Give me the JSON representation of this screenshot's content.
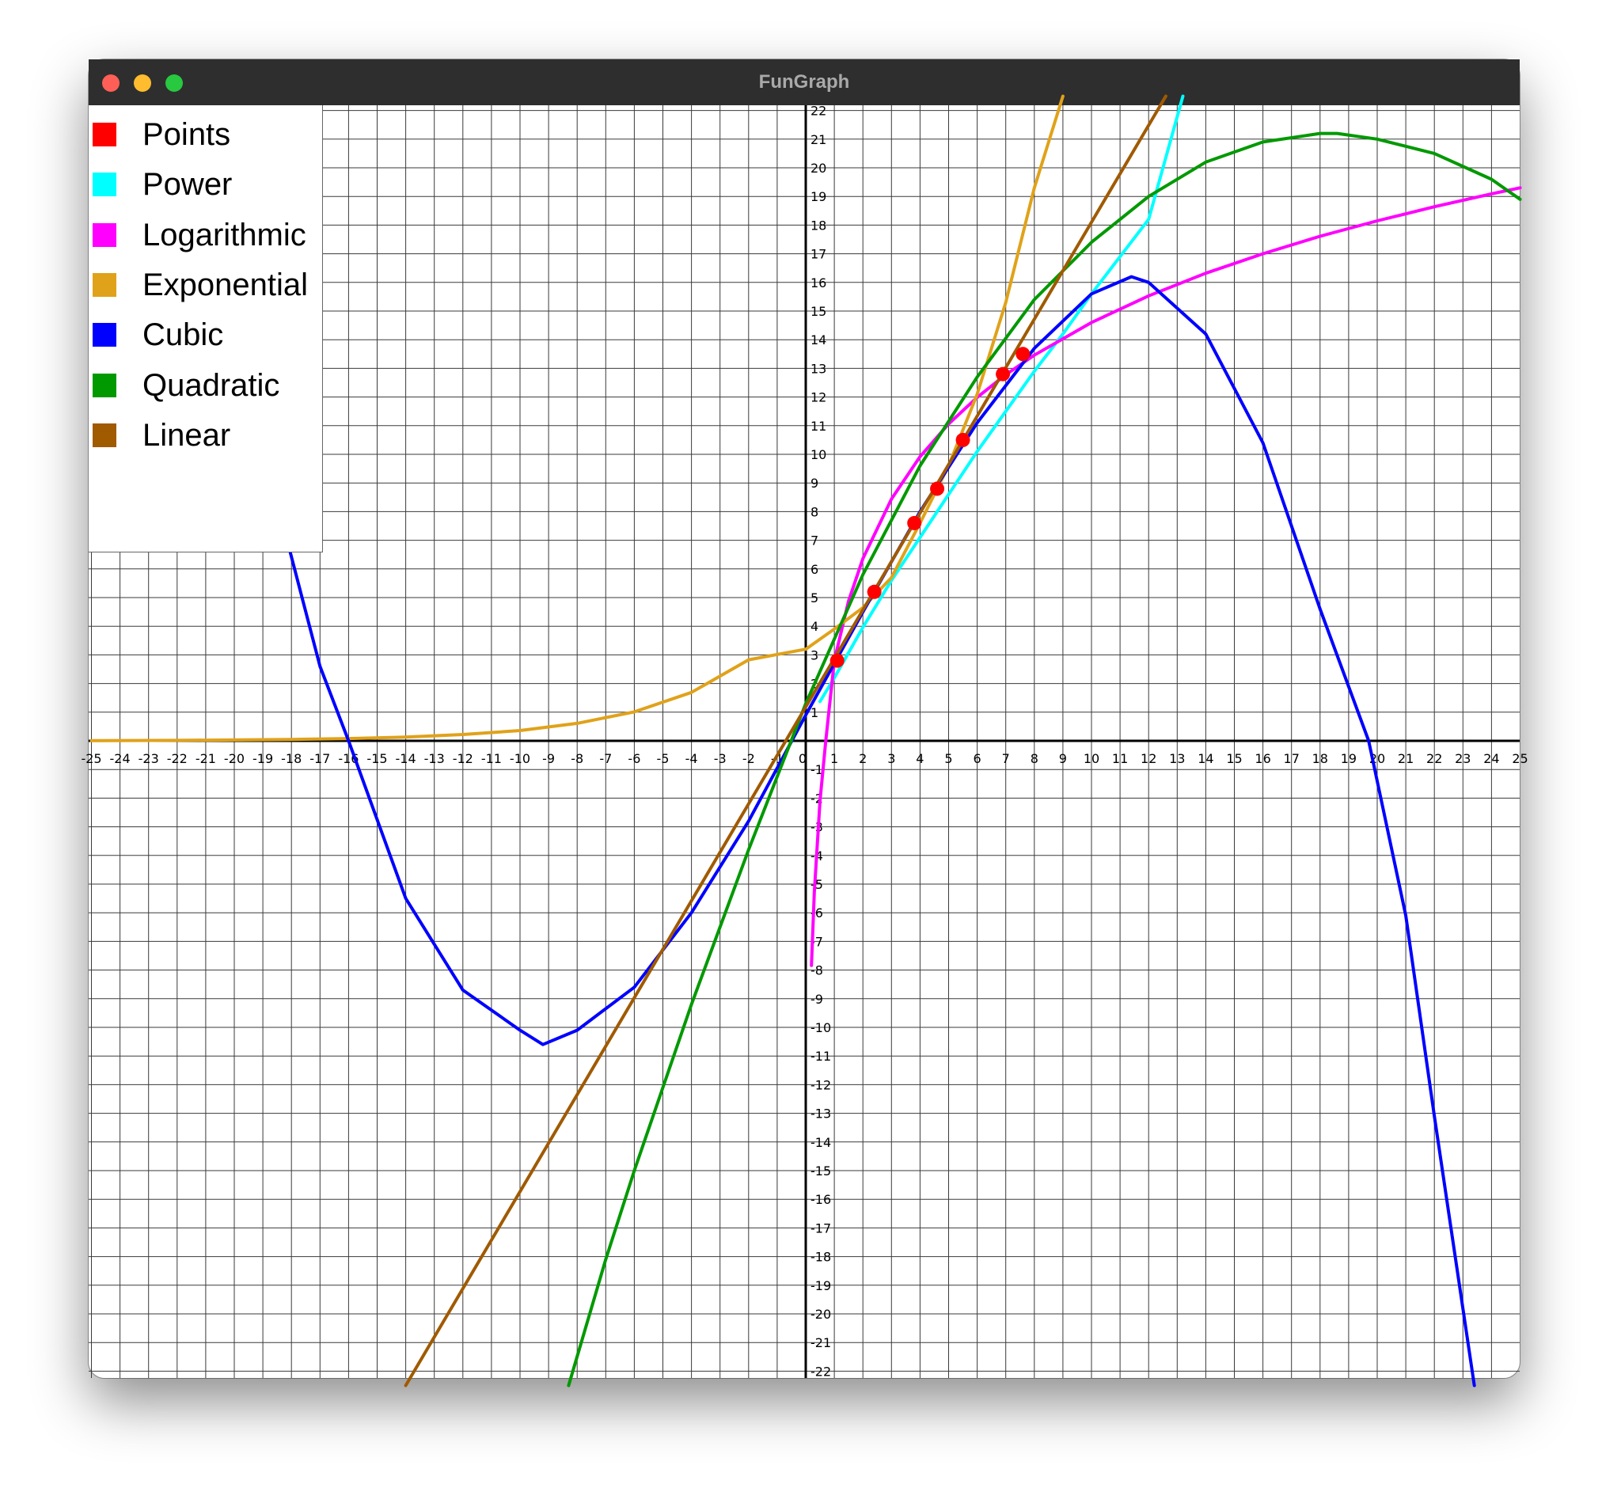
{
  "window": {
    "title": "FunGraph"
  },
  "legend": {
    "items": [
      {
        "label": "Points",
        "color": "#ff0000"
      },
      {
        "label": "Power",
        "color": "#00ffff"
      },
      {
        "label": "Logarithmic",
        "color": "#ff00ff"
      },
      {
        "label": "Exponential",
        "color": "#e0a21a"
      },
      {
        "label": "Cubic",
        "color": "#0000ff"
      },
      {
        "label": "Quadratic",
        "color": "#009900"
      },
      {
        "label": "Linear",
        "color": "#a05a00"
      }
    ]
  },
  "chart_data": {
    "type": "line",
    "xlim": [
      -25,
      25
    ],
    "ylim": [
      -22,
      22
    ],
    "grid": true,
    "x_ticks": [
      -25,
      -24,
      -23,
      -22,
      -21,
      -20,
      -19,
      -18,
      -17,
      -16,
      -15,
      -14,
      -13,
      -12,
      -11,
      -10,
      -9,
      -8,
      -7,
      -6,
      -5,
      -4,
      -3,
      -2,
      -1,
      0,
      1,
      2,
      3,
      4,
      5,
      6,
      7,
      8,
      9,
      10,
      11,
      12,
      13,
      14,
      15,
      16,
      17,
      18,
      19,
      20,
      21,
      22,
      23,
      24,
      25
    ],
    "y_ticks": [
      -22,
      -21,
      -20,
      -19,
      -18,
      -17,
      -16,
      -15,
      -14,
      -13,
      -12,
      -11,
      -10,
      -9,
      -8,
      -7,
      -6,
      -5,
      -4,
      -3,
      -2,
      -1,
      1,
      2,
      3,
      4,
      5,
      6,
      7,
      8,
      9,
      10,
      11,
      12,
      13,
      14,
      15,
      16,
      17,
      18,
      19,
      20,
      21,
      22
    ],
    "points": {
      "name": "Points",
      "color": "#ff0000",
      "x": [
        1.1,
        2.4,
        3.8,
        4.6,
        5.5,
        6.9,
        7.6
      ],
      "y": [
        2.8,
        5.2,
        7.6,
        8.8,
        10.5,
        12.8,
        13.5
      ]
    },
    "series": [
      {
        "name": "Power",
        "color": "#00ffff",
        "x": [
          0.5,
          1,
          2,
          3,
          4,
          5,
          6,
          7,
          8,
          9,
          10,
          11,
          12,
          13.2
        ],
        "y": [
          1.37,
          2.2,
          3.96,
          5.6,
          7.1,
          8.6,
          10.1,
          11.5,
          12.9,
          14.2,
          15.6,
          16.9,
          18.2,
          22.5
        ]
      },
      {
        "name": "Logarithmic",
        "color": "#ff00ff",
        "x": [
          0.2,
          0.3,
          0.5,
          0.7,
          1,
          1.5,
          2,
          3,
          4,
          5,
          6,
          7,
          8,
          10,
          12,
          14,
          16,
          18,
          20,
          22,
          24,
          25
        ],
        "y": [
          -7.84,
          -5.3,
          -2.1,
          0.0,
          2.8,
          4.88,
          6.36,
          8.44,
          9.92,
          11.06,
          11.99,
          12.78,
          13.46,
          14.6,
          15.53,
          16.32,
          17.0,
          17.61,
          18.15,
          18.64,
          19.09,
          19.3
        ]
      },
      {
        "name": "Exponential",
        "color": "#e0a21a",
        "x": [
          -25,
          -22,
          -20,
          -18,
          -16,
          -14,
          -12,
          -10,
          -8,
          -6,
          -4,
          -2,
          0,
          1,
          2,
          3,
          4,
          5,
          6,
          7,
          8,
          9
        ],
        "y": [
          0.006,
          0.016,
          0.03,
          0.05,
          0.08,
          0.13,
          0.22,
          0.36,
          0.61,
          1.01,
          1.69,
          2.83,
          3.2,
          3.9,
          4.65,
          5.7,
          7.6,
          9.6,
          12.1,
          15.3,
          19.3,
          22.5
        ]
      },
      {
        "name": "Cubic",
        "color": "#0000ff",
        "x": [
          -18.1,
          -17,
          -16,
          -14,
          -12,
          -10,
          -9.2,
          -8,
          -6,
          -4,
          -2,
          0,
          2,
          4,
          6,
          8,
          10,
          11.4,
          12,
          14,
          16,
          18,
          19.7,
          21,
          22,
          23.4
        ],
        "y": [
          6.8,
          2.6,
          0.0,
          -5.5,
          -8.7,
          -10.1,
          -10.6,
          -10.1,
          -8.6,
          -6.0,
          -2.8,
          0.9,
          4.5,
          8.0,
          11.1,
          13.7,
          15.6,
          16.2,
          16.0,
          14.2,
          10.4,
          4.6,
          0.0,
          -6.1,
          -13.1,
          -22.5
        ]
      },
      {
        "name": "Quadratic",
        "color": "#009900",
        "x": [
          -8.3,
          -7,
          -6,
          -4,
          -2,
          0,
          2,
          4,
          6,
          8,
          10,
          12,
          14,
          16,
          18,
          18.6,
          20,
          22,
          24,
          25
        ],
        "y": [
          -22.5,
          -18.1,
          -15.0,
          -9.2,
          -3.8,
          1.3,
          5.8,
          9.6,
          12.7,
          15.4,
          17.4,
          19.0,
          20.2,
          20.9,
          21.2,
          21.2,
          21.0,
          20.5,
          19.6,
          18.9
        ]
      },
      {
        "name": "Linear",
        "color": "#a05a00",
        "x": [
          -14.0,
          12.6
        ],
        "y": [
          -22.5,
          22.5
        ]
      }
    ]
  }
}
